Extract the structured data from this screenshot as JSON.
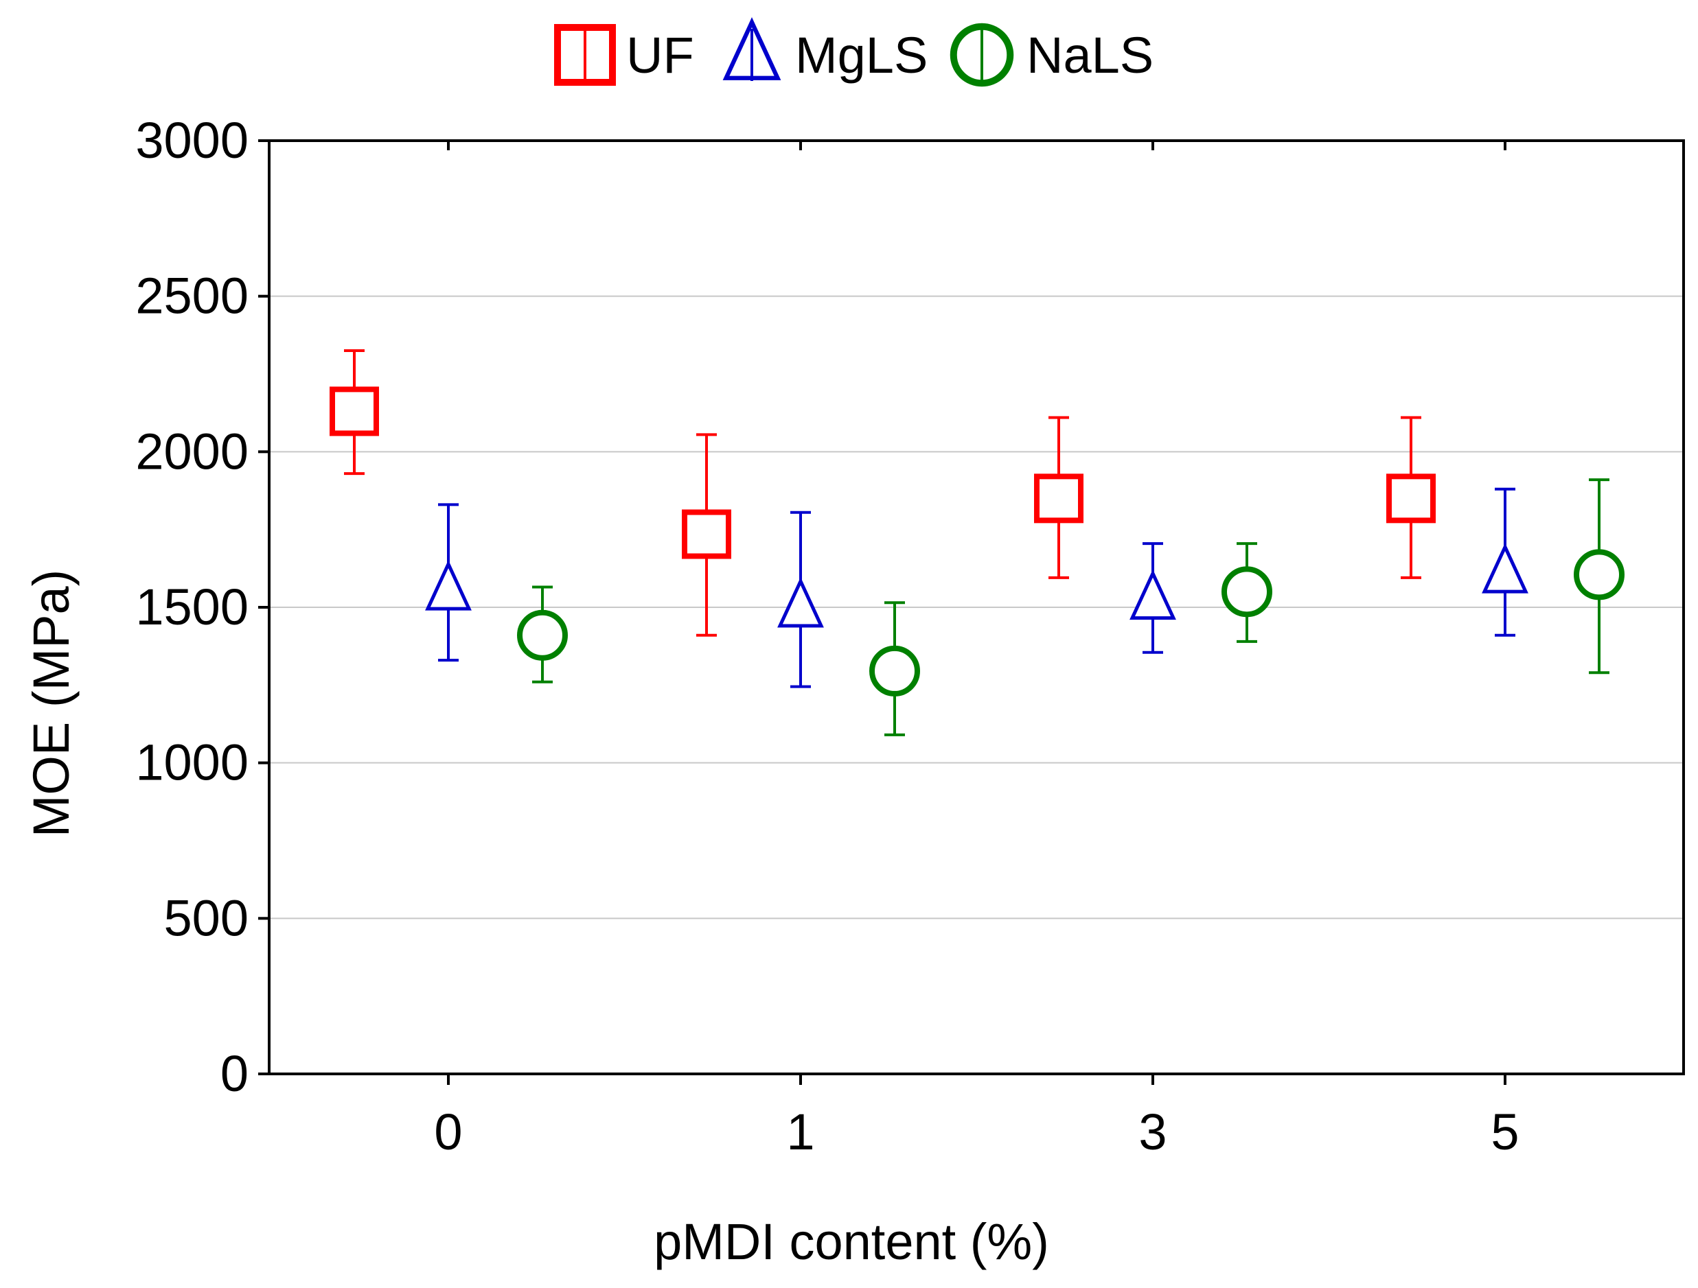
{
  "chart_data": {
    "type": "scatter",
    "title": "",
    "xlabel": "pMDI content (%)",
    "ylabel": "MOE (MPa)",
    "categories": [
      "0",
      "1",
      "3",
      "5"
    ],
    "ylim": [
      0,
      3000
    ],
    "yticks": [
      0,
      500,
      1000,
      1500,
      2000,
      2500,
      3000
    ],
    "grid": true,
    "legend_position": "top-center",
    "series": [
      {
        "name": "UF",
        "color": "#ff0000",
        "marker": "square",
        "values": [
          2130,
          1735,
          1850,
          1850
        ],
        "lower": [
          1930,
          1410,
          1595,
          1595
        ],
        "upper": [
          2325,
          2055,
          2110,
          2110
        ]
      },
      {
        "name": "MgLS",
        "color": "#0000cc",
        "marker": "triangle",
        "values": [
          1555,
          1500,
          1525,
          1610
        ],
        "lower": [
          1330,
          1245,
          1355,
          1410
        ],
        "upper": [
          1830,
          1805,
          1705,
          1880
        ]
      },
      {
        "name": "NaLS",
        "color": "#008000",
        "marker": "circle",
        "values": [
          1410,
          1295,
          1550,
          1605
        ],
        "lower": [
          1260,
          1090,
          1390,
          1290
        ],
        "upper": [
          1565,
          1515,
          1705,
          1910
        ]
      }
    ]
  }
}
